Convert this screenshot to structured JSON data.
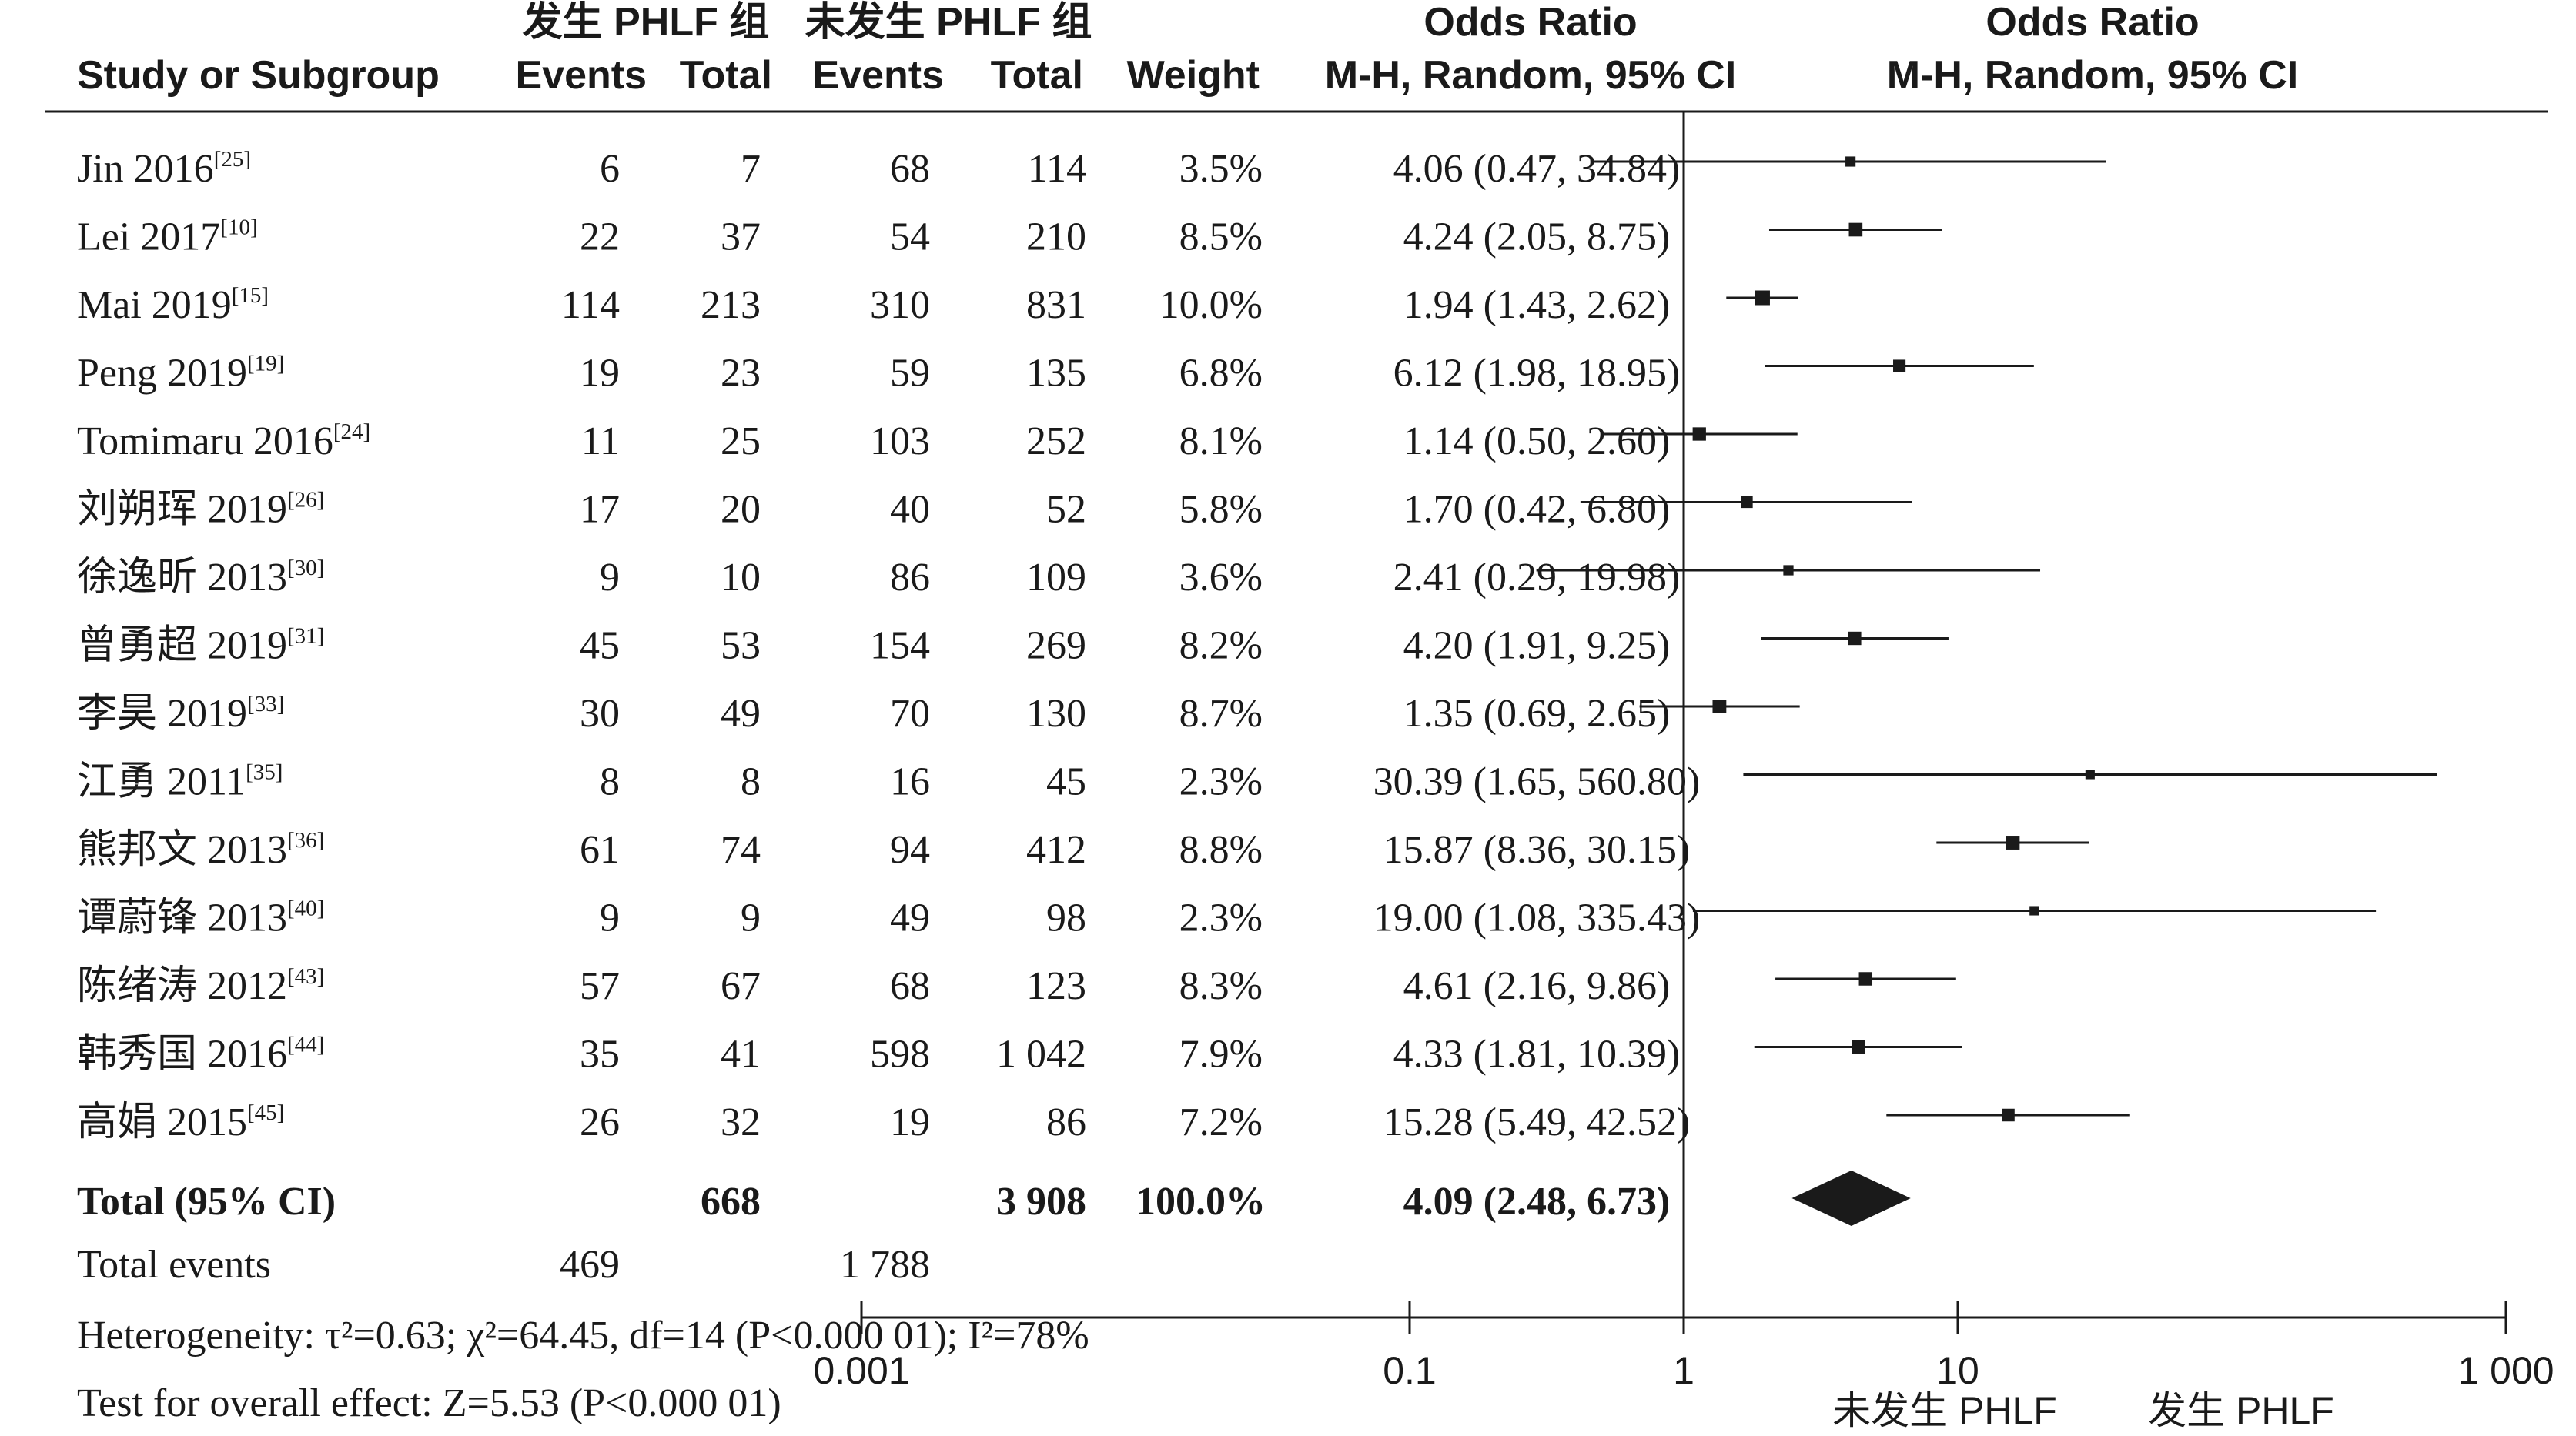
{
  "header": {
    "group1": "发生 PHLF 组",
    "group2": "未发生 PHLF 组",
    "study_col": "Study or Subgroup",
    "events1": "Events",
    "total1": "Total",
    "events2": "Events",
    "total2": "Total",
    "weight": "Weight",
    "or_title": "Odds Ratio",
    "or_method": "M-H, Random, 95% CI",
    "plot_title": "Odds Ratio",
    "plot_method": "M-H, Random, 95% CI"
  },
  "chart_data": {
    "type": "forest",
    "scale": "log",
    "xlim": [
      0.001,
      1000
    ],
    "null_line": 1,
    "ticks": [
      {
        "value": 0.001,
        "label": "0.001"
      },
      {
        "value": 0.1,
        "label": "0.1"
      },
      {
        "value": 1,
        "label": "1"
      },
      {
        "value": 10,
        "label": "10"
      },
      {
        "value": 1000,
        "label": "1 000"
      }
    ],
    "left_label": "未发生 PHLF",
    "right_label": "发生 PHLF",
    "studies": [
      {
        "name": "Jin 2016",
        "ref": "[25]",
        "e1": "6",
        "t1": "7",
        "e2": "68",
        "t2": "114",
        "weight": "3.5%",
        "ci_text": "4.06 (0.47, 34.84)",
        "or": 4.06,
        "lo": 0.47,
        "hi": 34.84
      },
      {
        "name": "Lei 2017",
        "ref": "[10]",
        "e1": "22",
        "t1": "37",
        "e2": "54",
        "t2": "210",
        "weight": "8.5%",
        "ci_text": "4.24 (2.05, 8.75)",
        "or": 4.24,
        "lo": 2.05,
        "hi": 8.75
      },
      {
        "name": "Mai 2019",
        "ref": "[15]",
        "e1": "114",
        "t1": "213",
        "e2": "310",
        "t2": "831",
        "weight": "10.0%",
        "ci_text": "1.94 (1.43, 2.62)",
        "or": 1.94,
        "lo": 1.43,
        "hi": 2.62
      },
      {
        "name": "Peng 2019",
        "ref": "[19]",
        "e1": "19",
        "t1": "23",
        "e2": "59",
        "t2": "135",
        "weight": "6.8%",
        "ci_text": "6.12 (1.98, 18.95)",
        "or": 6.12,
        "lo": 1.98,
        "hi": 18.95
      },
      {
        "name": "Tomimaru 2016",
        "ref": "[24]",
        "e1": "11",
        "t1": "25",
        "e2": "103",
        "t2": "252",
        "weight": "8.1%",
        "ci_text": "1.14 (0.50, 2.60)",
        "or": 1.14,
        "lo": 0.5,
        "hi": 2.6
      },
      {
        "name": "刘朔珲 2019",
        "ref": "[26]",
        "e1": "17",
        "t1": "20",
        "e2": "40",
        "t2": "52",
        "weight": "5.8%",
        "ci_text": "1.70 (0.42, 6.80)",
        "or": 1.7,
        "lo": 0.42,
        "hi": 6.8
      },
      {
        "name": "徐逸昕 2013",
        "ref": "[30]",
        "e1": "9",
        "t1": "10",
        "e2": "86",
        "t2": "109",
        "weight": "3.6%",
        "ci_text": "2.41 (0.29, 19.98)",
        "or": 2.41,
        "lo": 0.29,
        "hi": 19.98
      },
      {
        "name": "曾勇超 2019",
        "ref": "[31]",
        "e1": "45",
        "t1": "53",
        "e2": "154",
        "t2": "269",
        "weight": "8.2%",
        "ci_text": "4.20 (1.91, 9.25)",
        "or": 4.2,
        "lo": 1.91,
        "hi": 9.25
      },
      {
        "name": "李昊 2019",
        "ref": "[33]",
        "e1": "30",
        "t1": "49",
        "e2": "70",
        "t2": "130",
        "weight": "8.7%",
        "ci_text": "1.35 (0.69, 2.65)",
        "or": 1.35,
        "lo": 0.69,
        "hi": 2.65
      },
      {
        "name": "江勇 2011",
        "ref": "[35]",
        "e1": "8",
        "t1": "8",
        "e2": "16",
        "t2": "45",
        "weight": "2.3%",
        "ci_text": "30.39 (1.65, 560.80)",
        "or": 30.39,
        "lo": 1.65,
        "hi": 560.8
      },
      {
        "name": "熊邦文 2013",
        "ref": "[36]",
        "e1": "61",
        "t1": "74",
        "e2": "94",
        "t2": "412",
        "weight": "8.8%",
        "ci_text": "15.87 (8.36, 30.15)",
        "or": 15.87,
        "lo": 8.36,
        "hi": 30.15
      },
      {
        "name": "谭蔚锋 2013",
        "ref": "[40]",
        "e1": "9",
        "t1": "9",
        "e2": "49",
        "t2": "98",
        "weight": "2.3%",
        "ci_text": "19.00 (1.08, 335.43)",
        "or": 19.0,
        "lo": 1.08,
        "hi": 335.43
      },
      {
        "name": "陈绪涛 2012",
        "ref": "[43]",
        "e1": "57",
        "t1": "67",
        "e2": "68",
        "t2": "123",
        "weight": "8.3%",
        "ci_text": "4.61 (2.16, 9.86)",
        "or": 4.61,
        "lo": 2.16,
        "hi": 9.86
      },
      {
        "name": "韩秀国 2016",
        "ref": "[44]",
        "e1": "35",
        "t1": "41",
        "e2": "598",
        "t2": "1 042",
        "weight": "7.9%",
        "ci_text": "4.33 (1.81, 10.39)",
        "or": 4.33,
        "lo": 1.81,
        "hi": 10.39
      },
      {
        "name": "高娟 2015",
        "ref": "[45]",
        "e1": "26",
        "t1": "32",
        "e2": "19",
        "t2": "86",
        "weight": "7.2%",
        "ci_text": "15.28 (5.49, 42.52)",
        "or": 15.28,
        "lo": 5.49,
        "hi": 42.52
      }
    ],
    "total": {
      "label": "Total (95% CI)",
      "t1": "668",
      "t2": "3 908",
      "weight": "100.0%",
      "ci_text": "4.09 (2.48, 6.73)",
      "or": 4.09,
      "lo": 2.48,
      "hi": 6.73
    },
    "total_events": {
      "label": "Total events",
      "e1": "469",
      "e2": "1 788"
    },
    "heterogeneity": "Heterogeneity: τ²=0.63; χ²=64.45, df=14 (P<0.000 01); I²=78%",
    "overall_effect": "Test for overall effect: Z=5.53 (P<0.000 01)"
  }
}
